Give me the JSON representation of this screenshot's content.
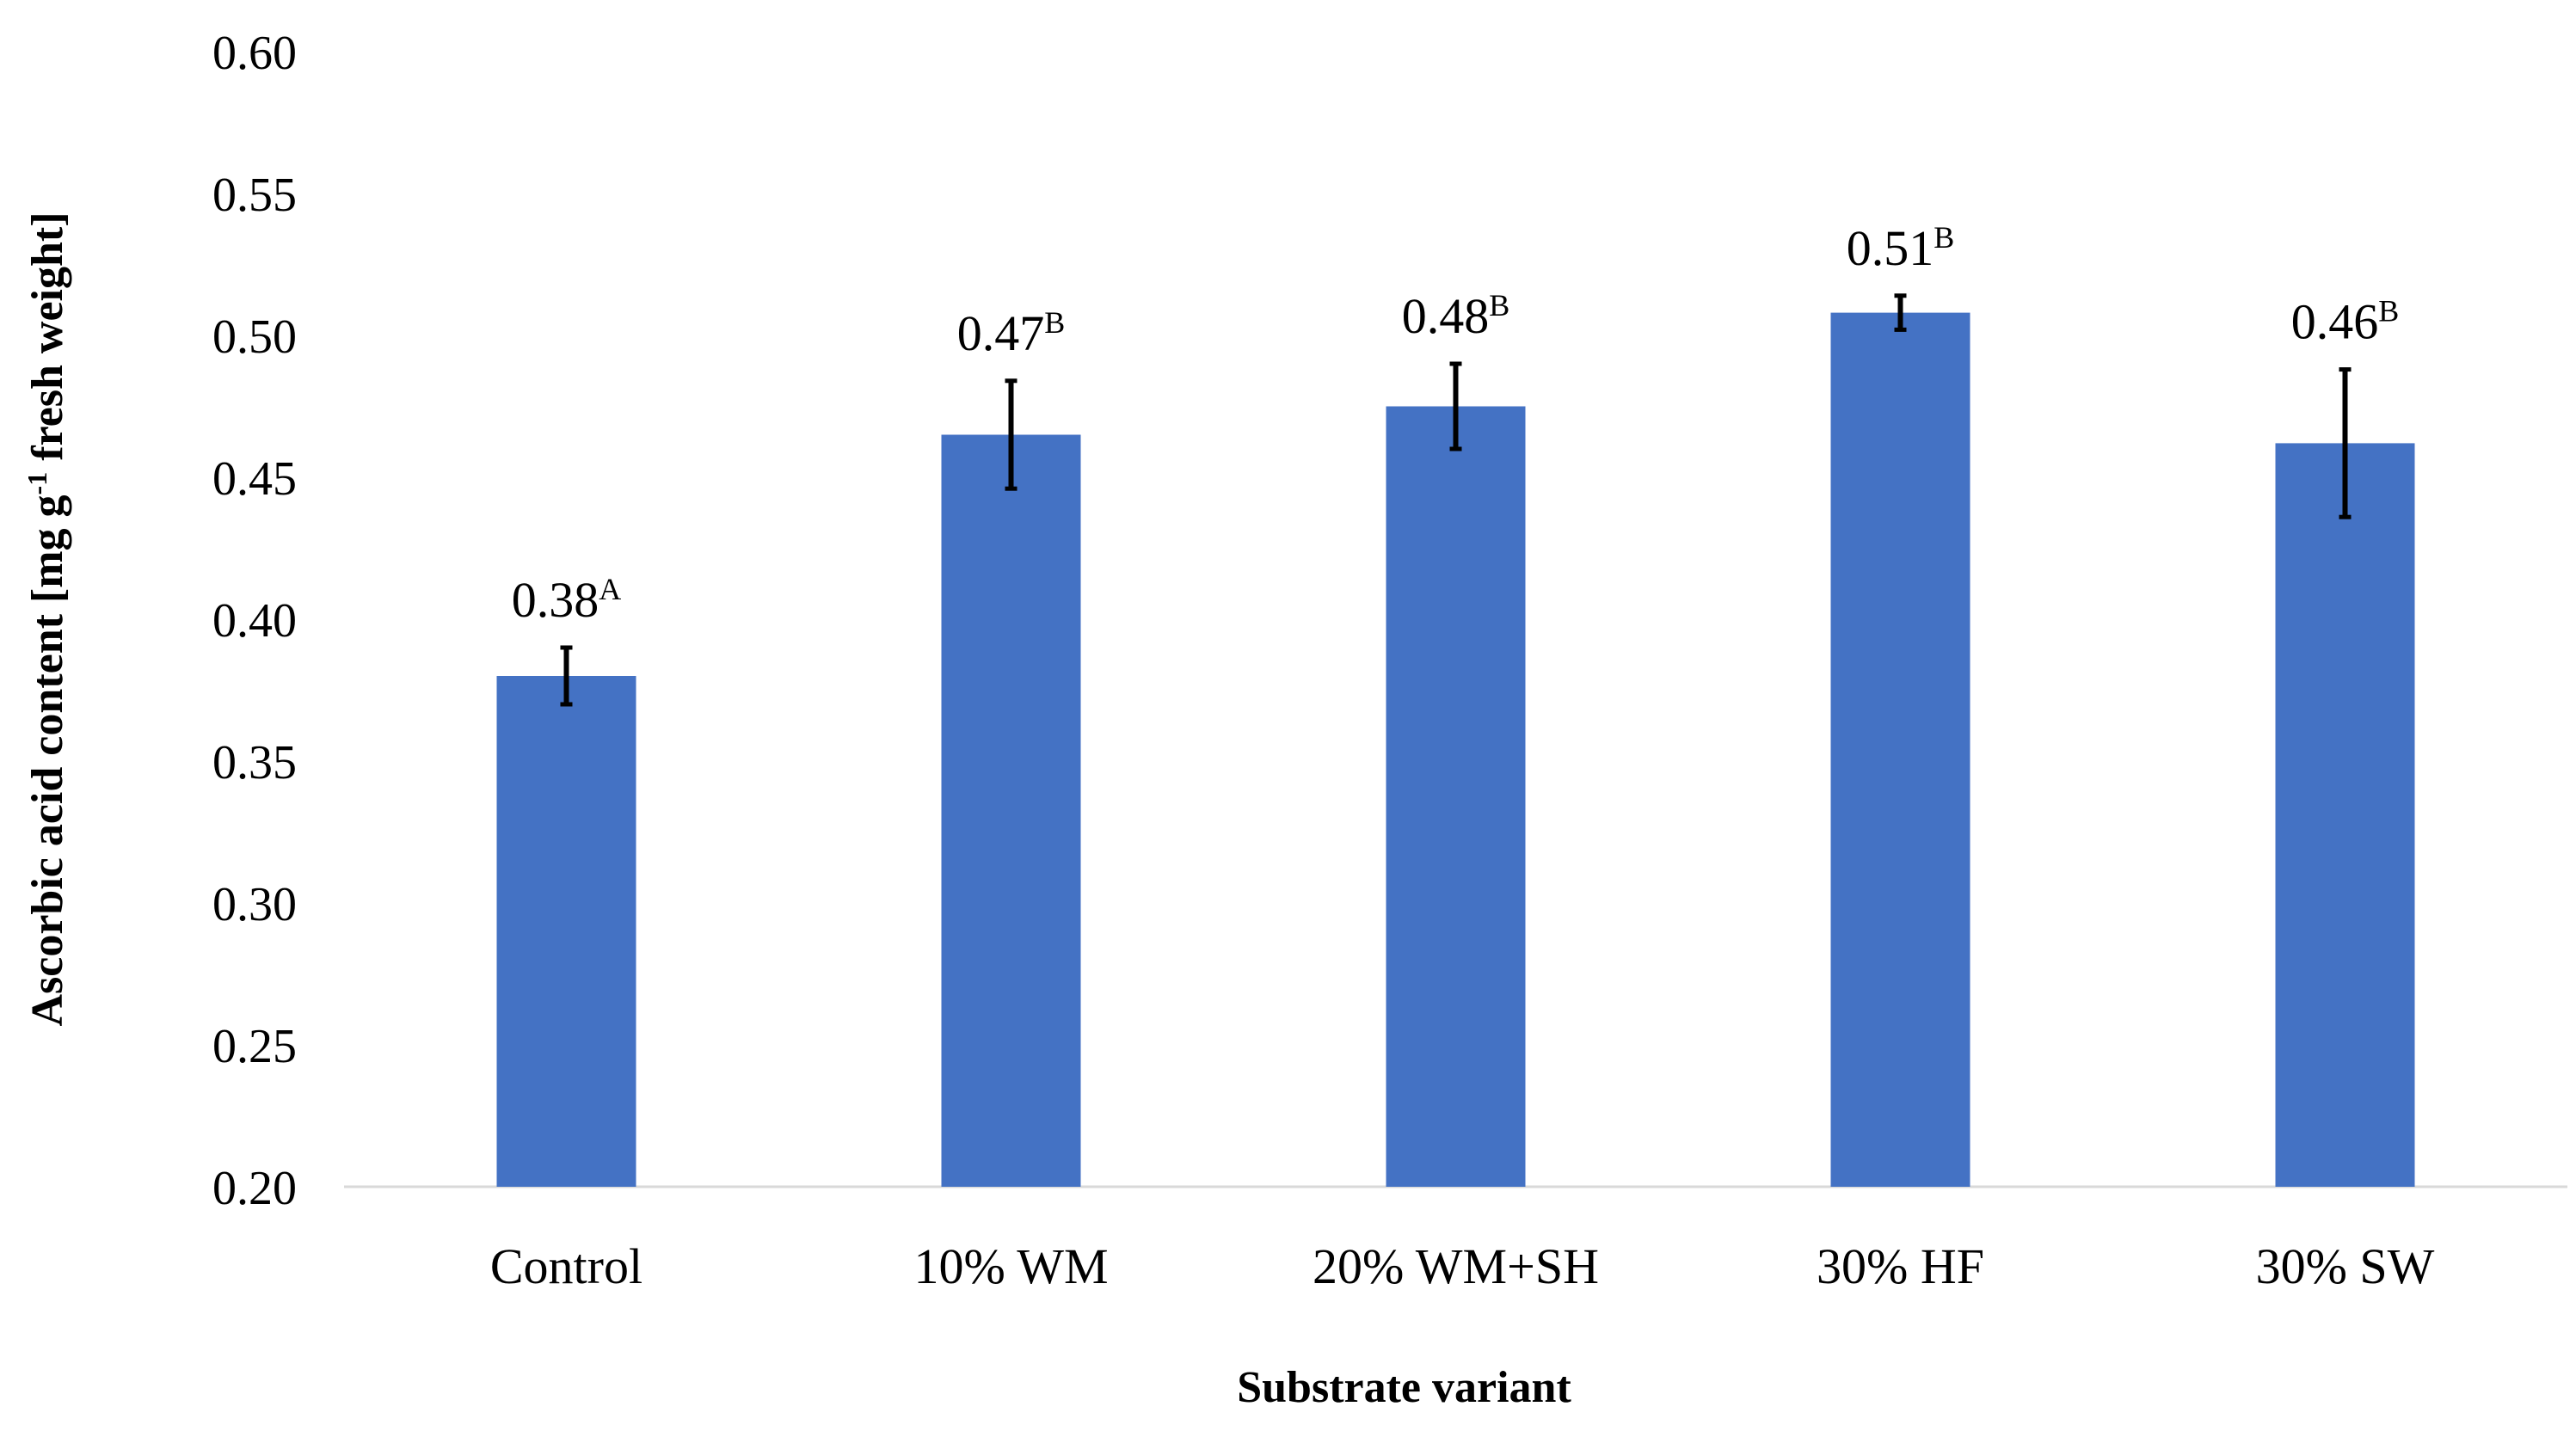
{
  "chart_data": {
    "type": "bar",
    "title": "",
    "xlabel": "Substrate variant",
    "ylabel": {
      "prefix": "Ascorbic acid content [mg g",
      "sup": "-1",
      "suffix": " fresh weight]"
    },
    "ylim": [
      0.2,
      0.6
    ],
    "y_ticks": [
      "0.20",
      "0.25",
      "0.30",
      "0.35",
      "0.40",
      "0.45",
      "0.50",
      "0.55",
      "0.60"
    ],
    "grid": false,
    "categories": [
      "Control",
      "10% WM",
      "20% WM+SH",
      "30% HF",
      "30% SW"
    ],
    "values": [
      0.38,
      0.465,
      0.475,
      0.508,
      0.462
    ],
    "errors": [
      0.01,
      0.019,
      0.015,
      0.006,
      0.026
    ],
    "data_labels": [
      {
        "value": "0.38",
        "sup": "A"
      },
      {
        "value": "0.47",
        "sup": "B"
      },
      {
        "value": "0.48",
        "sup": "B"
      },
      {
        "value": "0.51",
        "sup": "B"
      },
      {
        "value": "0.46",
        "sup": "B"
      }
    ],
    "colors": {
      "bar": "#4472C4",
      "error_bar": "#000000",
      "axis_line": "#D9D9D9"
    }
  }
}
